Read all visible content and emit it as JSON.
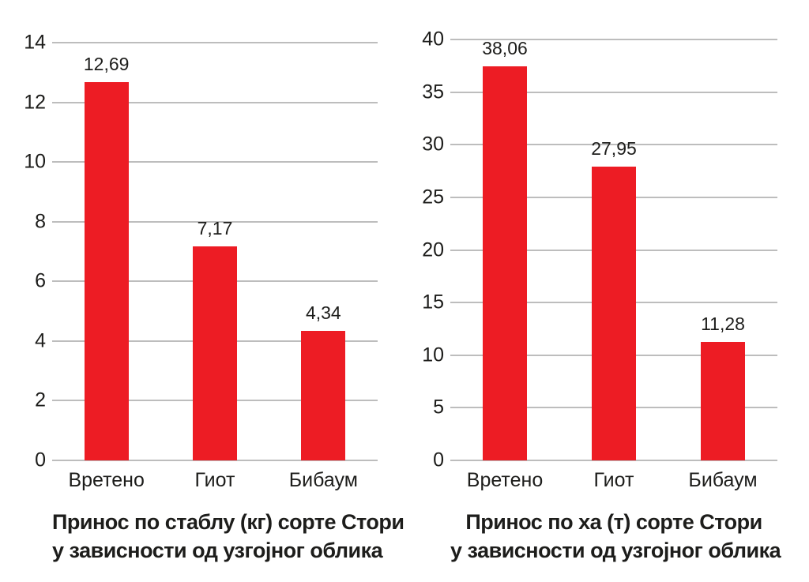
{
  "colors": {
    "bar": "#ED1C24",
    "grid": "#bdbdbd",
    "text": "#1d1d1b",
    "background": "#ffffff"
  },
  "chart_data": [
    {
      "type": "bar",
      "title": "Принос по стаблу (кг) сорте Стори у зависности од узгојног облика",
      "title_lines": [
        "Принос по стаблу (кг) сорте Стори",
        "у зависности од узгојног облика"
      ],
      "categories": [
        "Вретено",
        "Гиот",
        "Бибаум"
      ],
      "values": [
        12.69,
        7.17,
        4.34
      ],
      "value_labels": [
        "12,69",
        "7,17",
        "4,34"
      ],
      "xlabel": "",
      "ylabel": "",
      "ylim": [
        0,
        14
      ],
      "yticks": [
        0,
        2,
        4,
        6,
        8,
        10,
        12,
        14
      ],
      "grid": true,
      "legend": "none",
      "bar_color": "#ED1C24"
    },
    {
      "type": "bar",
      "title": "Принос по ха (т) сорте Стори у зависности од узгојног облика",
      "title_lines": [
        "Принос по ха (т) сорте Стори",
        "у зависности од узгојног облика"
      ],
      "categories": [
        "Вретено",
        "Гиот",
        "Бибаум"
      ],
      "values": [
        38.06,
        27.95,
        11.28
      ],
      "value_labels": [
        "38,06",
        "27,95",
        "11,28"
      ],
      "xlabel": "",
      "ylabel": "",
      "ylim": [
        0,
        40
      ],
      "yticks": [
        0,
        5,
        10,
        15,
        20,
        25,
        30,
        35,
        40
      ],
      "grid": true,
      "legend": "none",
      "bar_color": "#ED1C24"
    }
  ]
}
